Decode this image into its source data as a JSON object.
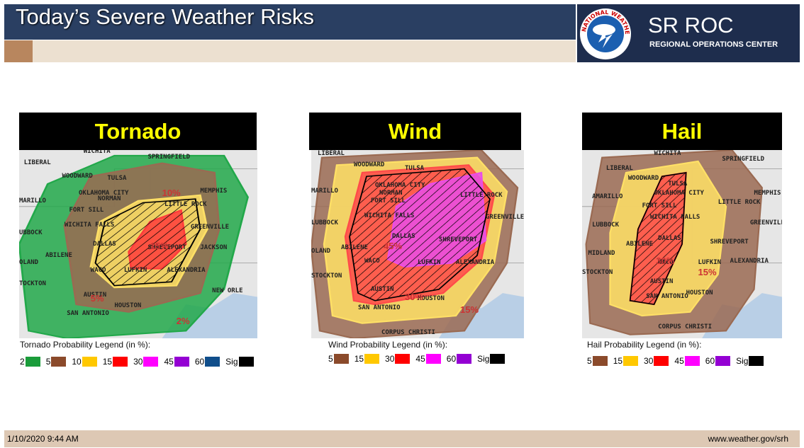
{
  "header": {
    "title": "Today’s Severe Weather Risks",
    "logo_ring": "NATIONAL WEATHER SERVICE",
    "org": "SR ROC",
    "org_sub": "REGIONAL OPERATIONS CENTER"
  },
  "panels": [
    {
      "title": "Tornado",
      "legend_title": "Tornado Probability Legend (in %):",
      "legend": [
        {
          "label": "2",
          "color": "#1a9c3a"
        },
        {
          "label": "5",
          "color": "#8b4a2b"
        },
        {
          "label": "10",
          "color": "#ffc800"
        },
        {
          "label": "15",
          "color": "#ff0000"
        },
        {
          "label": "30",
          "color": "#ff00ff"
        },
        {
          "label": "45",
          "color": "#9400d3"
        },
        {
          "label": "60",
          "color": "#104e8b"
        },
        {
          "label": "Sig",
          "color": "#000000"
        }
      ],
      "map_labels": [
        "LIBERAL",
        "WOODWARD",
        "WICHITA",
        "SPRINGFIELD",
        "TULSA",
        "OKLAHOMA CITY",
        "NORMAN",
        "MEMPHIS",
        "MARILLO",
        "FORT SILL",
        "LITTLE ROCK",
        "WICHITA FALLS",
        "UBBOCK",
        "GREENVILLE",
        "DALLAS",
        "SHREVEPORT",
        "JACKSON",
        "ABILENE",
        "OLAND",
        "WACO",
        "LUFKIN",
        "ALEXANDRIA",
        "TOCKTON",
        "AUSTIN",
        "NEW ORLE",
        "HOUSTON",
        "SAN ANTONIO",
        "10%",
        "15%",
        "5%",
        "2%"
      ]
    },
    {
      "title": "Wind",
      "legend_title": "Wind Probability Legend (in %):",
      "legend": [
        {
          "label": "5",
          "color": "#8b4a2b"
        },
        {
          "label": "15",
          "color": "#ffc800"
        },
        {
          "label": "30",
          "color": "#ff0000"
        },
        {
          "label": "45",
          "color": "#ff00ff"
        },
        {
          "label": "60",
          "color": "#9400d3"
        },
        {
          "label": "Sig",
          "color": "#000000"
        }
      ],
      "map_labels": [
        "LIBERAL",
        "WOODWARD",
        "TULSA",
        "MARILLO",
        "OKLAHOMA CITY",
        "NORMAN",
        "LITTLE ROCK",
        "FORT SILL",
        "WICHITA FALLS",
        "LUBBOCK",
        "GREENVILLE",
        "DALLAS",
        "SHREVEPORT",
        "ABILENE",
        "OLAND",
        "WACO",
        "LUFKIN",
        "ALEXANDRIA",
        "STOCKTON",
        "AUSTIN",
        "HOUSTON",
        "SAN ANTONIO",
        "CORPUS CHRISTI",
        "45%",
        "30%",
        "15%"
      ]
    },
    {
      "title": "Hail",
      "legend_title": "Hail Probability Legend (in %):",
      "legend": [
        {
          "label": "5",
          "color": "#8b4a2b"
        },
        {
          "label": "15",
          "color": "#ffc800"
        },
        {
          "label": "30",
          "color": "#ff0000"
        },
        {
          "label": "45",
          "color": "#ff00ff"
        },
        {
          "label": "60",
          "color": "#9400d3"
        },
        {
          "label": "Sig",
          "color": "#000000"
        }
      ],
      "map_labels": [
        "WICHITA",
        "SPRINGFIELD",
        "LIBERAL",
        "WOODWARD",
        "TULSA",
        "AMARILLO",
        "OKLAHOMA CITY",
        "MEMPHIS",
        "FORT SILL",
        "LITTLE ROCK",
        "LUBBOCK",
        "WICHITA FALLS",
        "GREENVILLE",
        "DALLAS",
        "SHREVEPORT",
        "MIDLAND",
        "ABILENE",
        "WACO",
        "LUFKIN",
        "ALEXANDRIA",
        "STOCKTON",
        "AUSTIN",
        "HOUSTON",
        "SAN ANTONIO",
        "CORPUS CHRISTI",
        "30%",
        "15%"
      ]
    }
  ],
  "footer": {
    "date": "1/10/2020 9:44 AM",
    "url": "www.weather.gov/srh"
  }
}
